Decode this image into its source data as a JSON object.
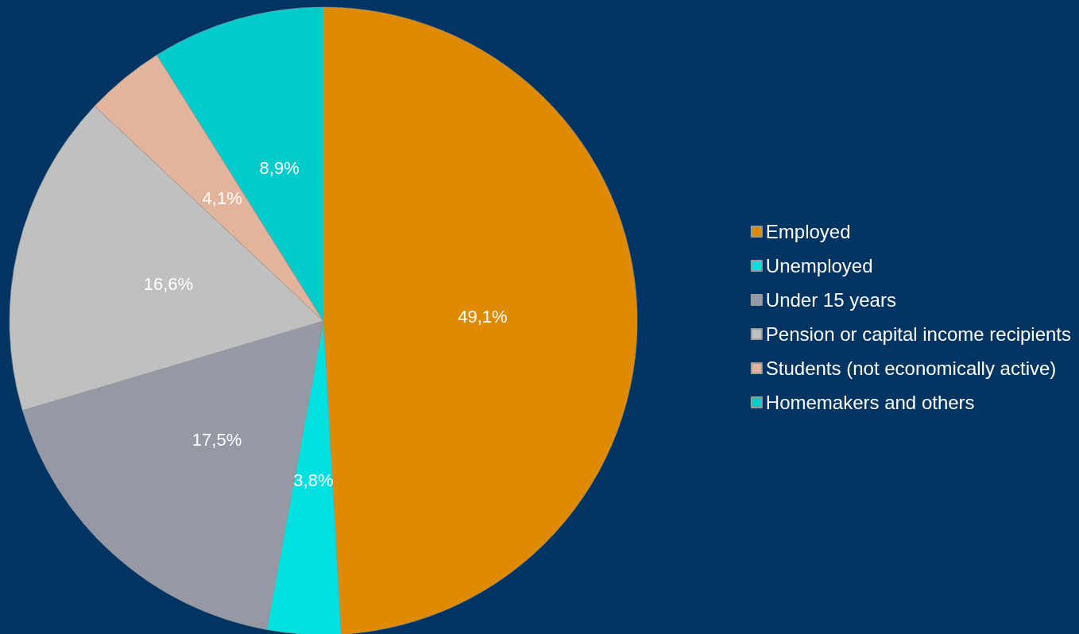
{
  "chart_data": {
    "type": "pie",
    "categories": [
      "Employed",
      "Unemployed",
      "Under 15 years",
      "Pension or capital income recipients",
      "Students (not economically active)",
      "Homemakers and others"
    ],
    "values": [
      49.1,
      3.8,
      17.5,
      16.6,
      4.1,
      8.9
    ],
    "colors": [
      "#e08a00",
      "#00e0e0",
      "#9699a3",
      "#c0c0c0",
      "#e2b49b",
      "#00cccc"
    ],
    "value_labels": [
      "49,1%",
      "3,8%",
      "17,5%",
      "16,6%",
      "4,1%",
      "8,9%"
    ],
    "legend": "right"
  }
}
